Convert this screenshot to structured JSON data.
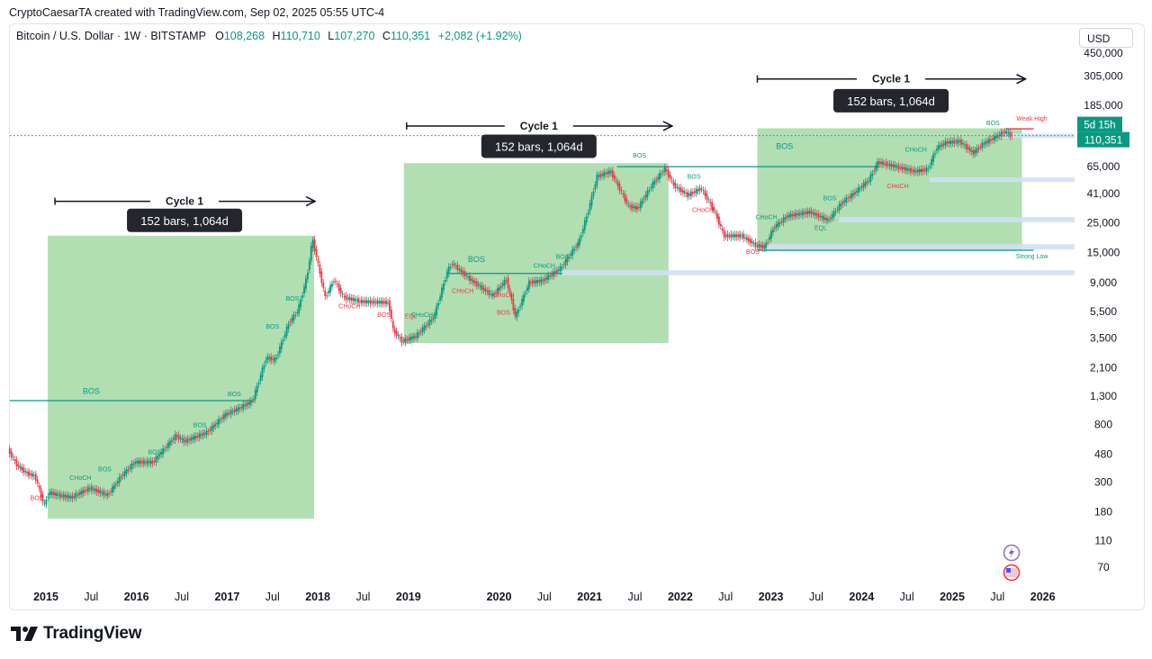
{
  "header": {
    "attribution": "CryptoCaesarTA created with TradingView.com, Sep 02, 2025 05:55 UTC-4",
    "symbol": "Bitcoin / U.S. Dollar · 1W · BITSTAMP",
    "open_label": "O",
    "open": "108,268",
    "high_label": "H",
    "high": "110,710",
    "low_label": "L",
    "low": "107,270",
    "close_label": "C",
    "close": "110,351",
    "change": "+2,082 (+1.92%)",
    "currency": "USD"
  },
  "brand": {
    "name": "TradingView"
  },
  "colors": {
    "up": "#089981",
    "down": "#f23645",
    "zone": "#a3d9a5",
    "band": "#cfe1f5"
  },
  "chart_data": {
    "type": "line",
    "title": "Bitcoin / U.S. Dollar · 1W · BITSTAMP",
    "scale": "log",
    "y_ticks": [
      450000,
      305000,
      185000,
      110351,
      65000,
      41000,
      25000,
      15000,
      9000,
      5500,
      3500,
      2100,
      1300,
      800,
      480,
      300,
      180,
      110,
      70
    ],
    "y_tick_labels": [
      "450,000",
      "305,000",
      "185,000",
      "110,351",
      "65,000",
      "41,000",
      "25,000",
      "15,000",
      "9,000",
      "5,500",
      "3,500",
      "2,100",
      "1,300",
      "800",
      "480",
      "300",
      "180",
      "110",
      "70"
    ],
    "x_ticks": [
      {
        "label": "2015",
        "t": 2015.0,
        "bold": true
      },
      {
        "label": "Jul",
        "t": 2015.5,
        "bold": false
      },
      {
        "label": "2016",
        "t": 2016.0,
        "bold": true
      },
      {
        "label": "Jul",
        "t": 2016.5,
        "bold": false
      },
      {
        "label": "2017",
        "t": 2017.0,
        "bold": true
      },
      {
        "label": "Jul",
        "t": 2017.5,
        "bold": false
      },
      {
        "label": "2018",
        "t": 2018.0,
        "bold": true
      },
      {
        "label": "Jul",
        "t": 2018.5,
        "bold": false
      },
      {
        "label": "2019",
        "t": 2019.0,
        "bold": true
      },
      {
        "label": "2020",
        "t": 2020.0,
        "bold": true
      },
      {
        "label": "Jul",
        "t": 2020.5,
        "bold": false
      },
      {
        "label": "2021",
        "t": 2021.0,
        "bold": true
      },
      {
        "label": "Jul",
        "t": 2021.5,
        "bold": false
      },
      {
        "label": "2022",
        "t": 2022.0,
        "bold": true
      },
      {
        "label": "Jul",
        "t": 2022.5,
        "bold": false
      },
      {
        "label": "2023",
        "t": 2023.0,
        "bold": true
      },
      {
        "label": "Jul",
        "t": 2023.5,
        "bold": false
      },
      {
        "label": "2024",
        "t": 2024.0,
        "bold": true
      },
      {
        "label": "Jul",
        "t": 2024.5,
        "bold": false
      },
      {
        "label": "2025",
        "t": 2025.0,
        "bold": true
      },
      {
        "label": "Jul",
        "t": 2025.5,
        "bold": false
      },
      {
        "label": "2026",
        "t": 2026.0,
        "bold": true
      }
    ],
    "price_path": [
      [
        2014.6,
        520
      ],
      [
        2014.7,
        400
      ],
      [
        2014.8,
        350
      ],
      [
        2014.9,
        330
      ],
      [
        2015.0,
        200
      ],
      [
        2015.05,
        250
      ],
      [
        2015.15,
        240
      ],
      [
        2015.3,
        230
      ],
      [
        2015.5,
        270
      ],
      [
        2015.7,
        240
      ],
      [
        2015.85,
        330
      ],
      [
        2016.0,
        420
      ],
      [
        2016.2,
        420
      ],
      [
        2016.45,
        660
      ],
      [
        2016.55,
        600
      ],
      [
        2016.8,
        700
      ],
      [
        2017.0,
        950
      ],
      [
        2017.15,
        1050
      ],
      [
        2017.3,
        1200
      ],
      [
        2017.45,
        2500
      ],
      [
        2017.55,
        2400
      ],
      [
        2017.7,
        4500
      ],
      [
        2017.8,
        5600
      ],
      [
        2017.9,
        10000
      ],
      [
        2017.96,
        19000
      ],
      [
        2018.05,
        10000
      ],
      [
        2018.1,
        7000
      ],
      [
        2018.2,
        9500
      ],
      [
        2018.3,
        7000
      ],
      [
        2018.5,
        6500
      ],
      [
        2018.8,
        6400
      ],
      [
        2018.85,
        4000
      ],
      [
        2018.95,
        3300
      ],
      [
        2019.1,
        3600
      ],
      [
        2019.3,
        5000
      ],
      [
        2019.45,
        11000
      ],
      [
        2019.5,
        12500
      ],
      [
        2019.7,
        9500
      ],
      [
        2019.85,
        8000
      ],
      [
        2019.95,
        7200
      ],
      [
        2020.1,
        9500
      ],
      [
        2020.2,
        5000
      ],
      [
        2020.35,
        9000
      ],
      [
        2020.5,
        9300
      ],
      [
        2020.7,
        11500
      ],
      [
        2020.9,
        18000
      ],
      [
        2021.0,
        30000
      ],
      [
        2021.1,
        55000
      ],
      [
        2021.25,
        60000
      ],
      [
        2021.45,
        33000
      ],
      [
        2021.55,
        32000
      ],
      [
        2021.7,
        47000
      ],
      [
        2021.85,
        63000
      ],
      [
        2021.95,
        47000
      ],
      [
        2022.1,
        40000
      ],
      [
        2022.25,
        45000
      ],
      [
        2022.4,
        30000
      ],
      [
        2022.5,
        20000
      ],
      [
        2022.7,
        20000
      ],
      [
        2022.85,
        17000
      ],
      [
        2022.95,
        16500
      ],
      [
        2023.05,
        23000
      ],
      [
        2023.2,
        28000
      ],
      [
        2023.45,
        30000
      ],
      [
        2023.65,
        26000
      ],
      [
        2023.8,
        35000
      ],
      [
        2023.95,
        42000
      ],
      [
        2024.1,
        52000
      ],
      [
        2024.2,
        70000
      ],
      [
        2024.4,
        65000
      ],
      [
        2024.6,
        60000
      ],
      [
        2024.75,
        62000
      ],
      [
        2024.85,
        90000
      ],
      [
        2024.95,
        98000
      ],
      [
        2025.1,
        100000
      ],
      [
        2025.25,
        82000
      ],
      [
        2025.35,
        95000
      ],
      [
        2025.5,
        108000
      ],
      [
        2025.6,
        118000
      ],
      [
        2025.67,
        110351
      ]
    ],
    "cycle_zones": [
      {
        "t0": 2015.02,
        "t1": 2017.96,
        "p_low": 160,
        "p_high": 20000
      },
      {
        "t0": 2018.95,
        "t1": 2021.87,
        "p_low": 3200,
        "p_high": 69000
      },
      {
        "t0": 2022.85,
        "t1": 2025.77,
        "p_low": 15600,
        "p_high": 125000
      }
    ],
    "cycle_labels": [
      {
        "label": "Cycle 1",
        "bars": "152 bars, 1,064d",
        "t0": 2015.1,
        "t1": 2017.96,
        "arrow_p": 36000,
        "box_p": 26000
      },
      {
        "label": "Cycle 1",
        "bars": "152 bars, 1,064d",
        "t0": 2018.98,
        "t1": 2021.9,
        "arrow_p": 130000,
        "box_p": 92000
      },
      {
        "label": "Cycle 1",
        "bars": "152 bars, 1,064d",
        "t0": 2022.85,
        "t1": 2025.8,
        "arrow_p": 290000,
        "box_p": 200000
      }
    ],
    "horizontal_levels": [
      {
        "type": "bos-line",
        "p": 1200,
        "t0": 2014.6,
        "t1": 2017.3,
        "color": "#089981"
      },
      {
        "type": "bos-line",
        "p": 10500,
        "t0": 2019.45,
        "t1": 2020.7,
        "color": "#089981"
      },
      {
        "type": "bos-line",
        "p": 65000,
        "t0": 2021.3,
        "t1": 2024.2,
        "color": "#089981"
      },
      {
        "type": "weak-high",
        "p": 124000,
        "t0": 2025.6,
        "t1": 2025.9,
        "color": "#f23645"
      },
      {
        "type": "strong-low",
        "p": 15600,
        "t0": 2022.85,
        "t1": 2025.9,
        "color": "#089981"
      }
    ],
    "bands": [
      {
        "p_low": 106000,
        "p_high": 114000,
        "t0": 2025.5,
        "t1": 2026.35
      },
      {
        "p_low": 50000,
        "p_high": 54000,
        "t0": 2024.75,
        "t1": 2026.35
      },
      {
        "p_low": 25200,
        "p_high": 27500,
        "t0": 2023.75,
        "t1": 2026.35
      },
      {
        "p_low": 15800,
        "p_high": 17300,
        "t0": 2022.95,
        "t1": 2026.35
      },
      {
        "p_low": 10200,
        "p_high": 11100,
        "t0": 2020.6,
        "t1": 2026.35
      }
    ],
    "annotations": [
      {
        "text": "BOS",
        "t": 2014.9,
        "p": 220,
        "color": "#f23645"
      },
      {
        "text": "CHoCH",
        "t": 2015.38,
        "p": 310,
        "color": "#089981"
      },
      {
        "text": "BOS",
        "t": 2015.65,
        "p": 360,
        "color": "#089981"
      },
      {
        "text": "BOS",
        "t": 2016.2,
        "p": 480,
        "color": "#089981"
      },
      {
        "text": "BOS",
        "t": 2016.7,
        "p": 760,
        "color": "#089981"
      },
      {
        "text": "BOS",
        "t": 2017.08,
        "p": 1300,
        "color": "#089981"
      },
      {
        "text": "BOS",
        "t": 2017.5,
        "p": 4100,
        "color": "#089981"
      },
      {
        "text": "BOS",
        "t": 2017.72,
        "p": 6600,
        "color": "#089981"
      },
      {
        "text": "BOS",
        "t": 2015.5,
        "p": 1350,
        "color": "#089981",
        "size": 9
      },
      {
        "text": "CHoCH",
        "t": 2018.35,
        "p": 5800,
        "color": "#f23645"
      },
      {
        "text": "BOS",
        "t": 2018.73,
        "p": 5000,
        "color": "#f23645"
      },
      {
        "text": "EQL",
        "t": 2019.03,
        "p": 4900,
        "color": "#f23645"
      },
      {
        "text": "CHoCH",
        "t": 2019.15,
        "p": 5000,
        "color": "#089981"
      },
      {
        "text": "CHoCH",
        "t": 2019.6,
        "p": 7500,
        "color": "#f23645"
      },
      {
        "text": "BOS",
        "t": 2019.75,
        "p": 12800,
        "color": "#089981",
        "size": 9
      },
      {
        "text": "CHoCH",
        "t": 2020.05,
        "p": 7000,
        "color": "#f23645"
      },
      {
        "text": "BOS",
        "t": 2020.05,
        "p": 5200,
        "color": "#f23645"
      },
      {
        "text": "CHoCH",
        "t": 2020.5,
        "p": 11600,
        "color": "#089981"
      },
      {
        "text": "BOS",
        "t": 2020.7,
        "p": 13500,
        "color": "#089981"
      },
      {
        "text": "BOS",
        "t": 2021.55,
        "p": 76000,
        "color": "#089981"
      },
      {
        "text": "BOS",
        "t": 2022.15,
        "p": 53000,
        "color": "#089981"
      },
      {
        "text": "CHoCH",
        "t": 2022.25,
        "p": 30000,
        "color": "#f23645"
      },
      {
        "text": "BOS",
        "t": 2022.8,
        "p": 14700,
        "color": "#f23645"
      },
      {
        "text": "CHoCH",
        "t": 2022.95,
        "p": 26500,
        "color": "#089981"
      },
      {
        "text": "BOS",
        "t": 2023.65,
        "p": 36500,
        "color": "#089981"
      },
      {
        "text": "EQL",
        "t": 2023.55,
        "p": 22000,
        "color": "#089981"
      },
      {
        "text": "BOS",
        "t": 2023.15,
        "p": 88000,
        "color": "#089981",
        "size": 9
      },
      {
        "text": "CHoCH",
        "t": 2024.6,
        "p": 84000,
        "color": "#089981"
      },
      {
        "text": "CHoCH",
        "t": 2024.4,
        "p": 45000,
        "color": "#f23645"
      },
      {
        "text": "BOS",
        "t": 2025.45,
        "p": 132000,
        "color": "#089981"
      },
      {
        "text": "Weak High",
        "t": 2025.88,
        "p": 142000,
        "color": "#f23645"
      },
      {
        "text": "Strong Low",
        "t": 2025.88,
        "p": 13600,
        "color": "#089981"
      }
    ],
    "last_price": {
      "value": "110,351",
      "countdown": "5d 15h",
      "p": 110351
    }
  }
}
